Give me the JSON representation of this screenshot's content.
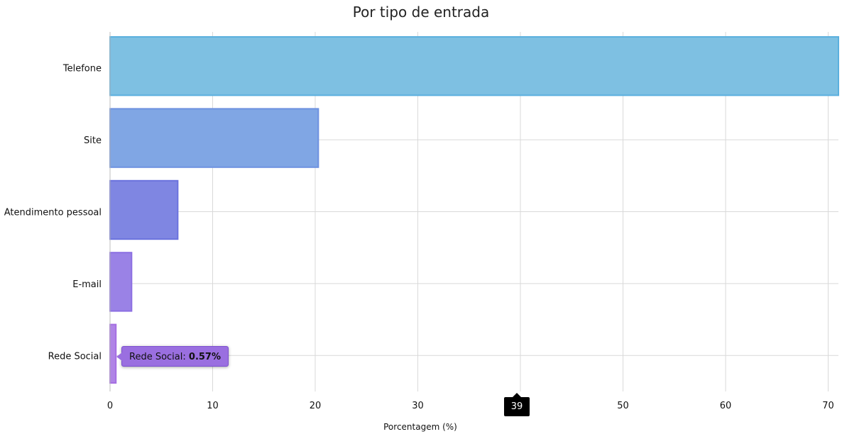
{
  "chart_data": {
    "type": "bar",
    "orientation": "horizontal",
    "title": "Por tipo de entrada",
    "xlabel": "Porcentagem (%)",
    "ylabel": "",
    "categories": [
      "Telefone",
      "Site",
      "Atendimento pessoal",
      "E-mail",
      "Rede Social"
    ],
    "values": [
      71.5,
      20.3,
      6.6,
      2.1,
      0.57
    ],
    "xlim": [
      0,
      71
    ],
    "xticks": [
      0,
      10,
      20,
      30,
      40,
      50,
      60,
      70
    ],
    "grid": true,
    "colors": [
      "#7ec0e2",
      "#80a6e4",
      "#7f86e2",
      "#9a82e6",
      "#b084e6"
    ],
    "stroke_colors": [
      "#5bb0de",
      "#6d91e0",
      "#6b73de",
      "#8c6fe2",
      "#a56fe2"
    ]
  },
  "tooltip": {
    "label": "Rede Social:",
    "value": "0.57%"
  },
  "cursor_badge": "39"
}
